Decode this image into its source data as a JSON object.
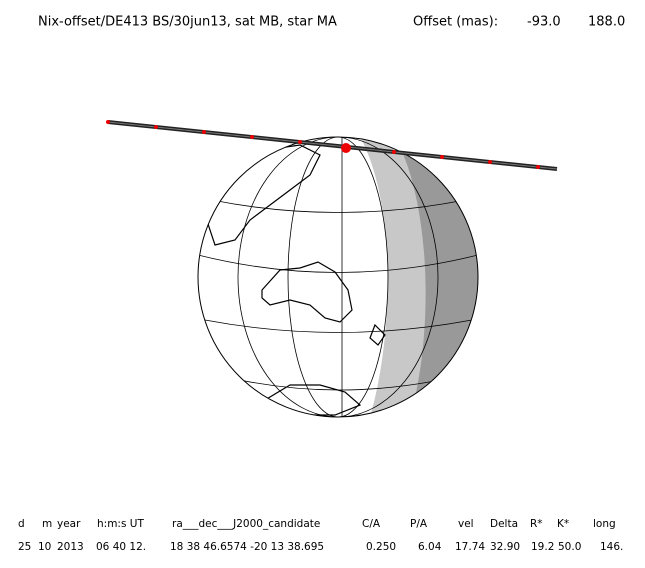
{
  "header": {
    "title": "Nix-offset/DE413 BS/30jun13, sat MB, star MA",
    "offset_label": "Offset (mas):",
    "offset_values": [
      "-93.0",
      "188.0"
    ]
  },
  "table": {
    "columns": [
      "d",
      "m",
      "year",
      "h:m:s UT",
      "ra___dec___J2000_candidate",
      "C/A",
      "P/A",
      "vel",
      "Delta",
      "R*",
      "K*",
      "long"
    ],
    "rows": [
      [
        "25",
        "10",
        "2013",
        "06 40 12.",
        "18 38 46.6574 -20 13 38.695",
        "0.250",
        "6.04",
        "17.74",
        "32.90",
        "19.2",
        "50.0",
        "146."
      ]
    ]
  }
}
